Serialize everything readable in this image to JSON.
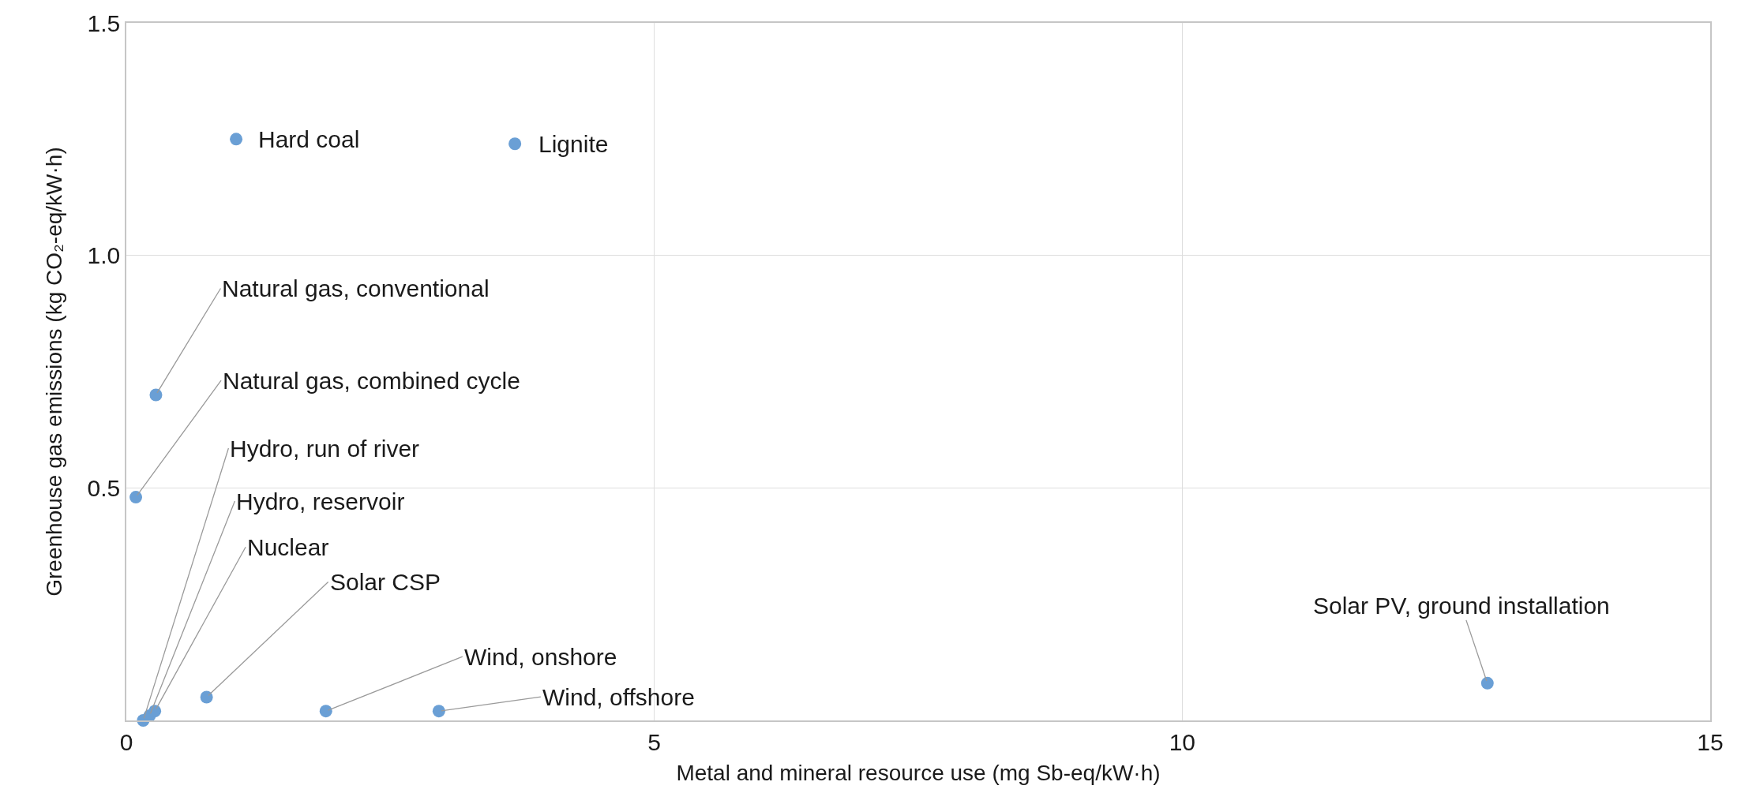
{
  "chart_data": {
    "type": "scatter",
    "xlabel": "Metal and mineral resource use (mg Sb-eq/kW·h)",
    "ylabel": "Greenhouse gas emissions (kg CO₂-eq/kW·h)",
    "x": [
      1.04,
      3.68,
      0.28,
      0.09,
      0.16,
      0.22,
      0.27,
      0.76,
      1.89,
      2.96,
      12.89
    ],
    "series": [
      {
        "color": "#6a9fd5",
        "values": [
          1.25,
          1.24,
          0.7,
          0.48,
          0.0,
          0.01,
          0.02,
          0.05,
          0.02,
          0.02,
          0.08
        ]
      }
    ],
    "annotations": [
      {
        "text": "Hard coal",
        "x": 1.04,
        "y": 1.25
      },
      {
        "text": "Lignite",
        "x": 3.68,
        "y": 1.24
      },
      {
        "text": "Natural gas, conventional",
        "x": 0.28,
        "y": 0.7
      },
      {
        "text": "Natural gas, combined cycle",
        "x": 0.09,
        "y": 0.48
      },
      {
        "text": "Hydro, run of river",
        "x": 0.16,
        "y": 0.0
      },
      {
        "text": "Hydro, reservoir",
        "x": 0.22,
        "y": 0.01
      },
      {
        "text": "Nuclear",
        "x": 0.27,
        "y": 0.02
      },
      {
        "text": "Solar CSP",
        "x": 0.76,
        "y": 0.05
      },
      {
        "text": "Wind, onshore",
        "x": 1.89,
        "y": 0.02
      },
      {
        "text": "Wind, offshore",
        "x": 2.96,
        "y": 0.02
      },
      {
        "text": "Solar PV, ground installation",
        "x": 12.89,
        "y": 0.08
      }
    ],
    "xlim": [
      0,
      15
    ],
    "xticks": [
      0,
      5,
      10,
      15
    ],
    "ylim": [
      0,
      1.5
    ],
    "yticks": [
      0.5,
      {
        "value": 1,
        "label": "1.0"
      },
      1.5
    ],
    "grid": true,
    "marker": "circle"
  }
}
